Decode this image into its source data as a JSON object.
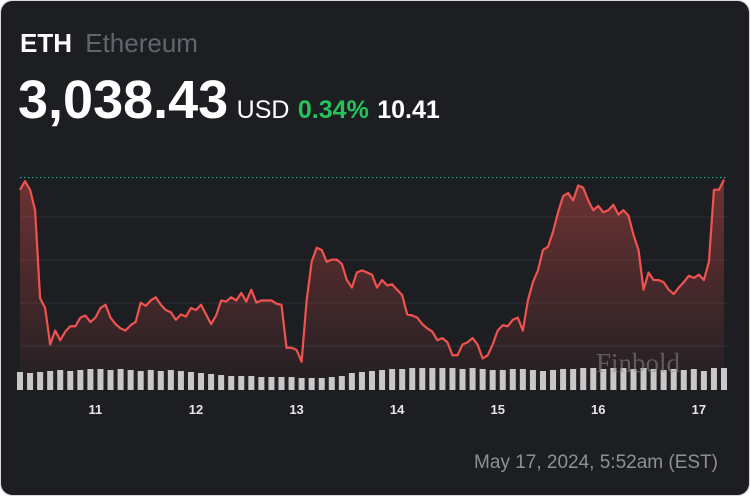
{
  "header": {
    "symbol": "ETH",
    "name": "Ethereum",
    "price": "3,038.43",
    "currency": "USD",
    "change_percent": "0.34%",
    "change": "10.41"
  },
  "chart_data": {
    "type": "line",
    "categories": [
      null,
      null,
      null,
      null,
      null,
      null,
      null,
      null,
      null,
      null,
      null,
      null,
      null,
      null,
      null,
      "11",
      null,
      null,
      null,
      null,
      null,
      null,
      null,
      null,
      null,
      null,
      null,
      null,
      null,
      null,
      null,
      null,
      null,
      null,
      null,
      "12",
      null,
      null,
      null,
      null,
      null,
      null,
      null,
      null,
      null,
      null,
      null,
      null,
      null,
      null,
      null,
      null,
      null,
      null,
      null,
      "13",
      null,
      null,
      null,
      null,
      null,
      null,
      null,
      null,
      null,
      null,
      null,
      null,
      null,
      null,
      null,
      null,
      null,
      null,
      null,
      "14",
      null,
      null,
      null,
      null,
      null,
      null,
      null,
      null,
      null,
      null,
      null,
      null,
      null,
      null,
      null,
      null,
      null,
      null,
      null,
      "15",
      null,
      null,
      null,
      null,
      null,
      null,
      null,
      null,
      null,
      null,
      null,
      null,
      null,
      null,
      null,
      null,
      null,
      null,
      null,
      "16",
      null,
      null,
      null,
      null,
      null,
      null,
      null,
      null,
      null,
      null,
      null,
      null,
      null,
      null,
      null,
      null,
      null,
      null,
      null,
      "17",
      null,
      null,
      null,
      null,
      null
    ],
    "values": [
      3029,
      3037,
      3029,
      3010,
      2928,
      2919,
      2885,
      2898,
      2889,
      2897,
      2902,
      2902,
      2910,
      2912,
      2906,
      2910,
      2919,
      2922,
      2910,
      2904,
      2900,
      2898,
      2903,
      2906,
      2924,
      2921,
      2926,
      2929,
      2922,
      2917,
      2915,
      2908,
      2913,
      2911,
      2919,
      2917,
      2922,
      2913,
      2904,
      2912,
      2926,
      2925,
      2929,
      2926,
      2933,
      2925,
      2936,
      2924,
      2926,
      2926,
      2926,
      2923,
      2922,
      2882,
      2882,
      2880,
      2869,
      2926,
      2962,
      2975,
      2973,
      2962,
      2964,
      2964,
      2960,
      2945,
      2938,
      2952,
      2954,
      2952,
      2950,
      2938,
      2945,
      2940,
      2941,
      2936,
      2931,
      2913,
      2912,
      2910,
      2904,
      2900,
      2897,
      2889,
      2891,
      2887,
      2875,
      2875,
      2885,
      2887,
      2891,
      2885,
      2872,
      2875,
      2885,
      2898,
      2903,
      2902,
      2908,
      2910,
      2898,
      2926,
      2943,
      2954,
      2973,
      2976,
      2990,
      3008,
      3023,
      3026,
      3019,
      3033,
      3031,
      3019,
      3010,
      3014,
      3008,
      3010,
      3015,
      3006,
      3010,
      3005,
      2987,
      2973,
      2936,
      2952,
      2945,
      2945,
      2943,
      2936,
      2932,
      2938,
      2943,
      2949,
      2947,
      2950,
      2945,
      2962,
      3029,
      3029,
      3038.43
    ],
    "color": "#f0534f",
    "ylim": [
      2852,
      3066
    ],
    "volume": {
      "values": [
        18,
        17,
        18,
        19,
        20,
        19,
        20,
        21,
        21,
        20,
        21,
        20,
        19,
        20,
        19,
        20,
        19,
        18,
        17,
        16,
        15,
        14,
        14,
        14,
        13,
        13,
        13,
        13,
        12,
        12,
        12,
        13,
        14,
        17,
        18,
        19,
        20,
        21,
        21,
        22,
        22,
        22,
        22,
        22,
        21,
        22,
        21,
        20,
        20,
        21,
        21,
        20,
        19,
        20,
        21,
        21,
        22,
        22,
        21,
        22,
        22,
        21,
        22,
        21,
        20,
        21,
        20,
        21,
        19,
        22,
        22
      ],
      "color": "#c8c8c8"
    },
    "y2lim": [
      0,
      25
    ]
  },
  "footer": {
    "watermark": "Finbold",
    "timestamp": "May 17, 2024, 5:52am (EST)"
  }
}
